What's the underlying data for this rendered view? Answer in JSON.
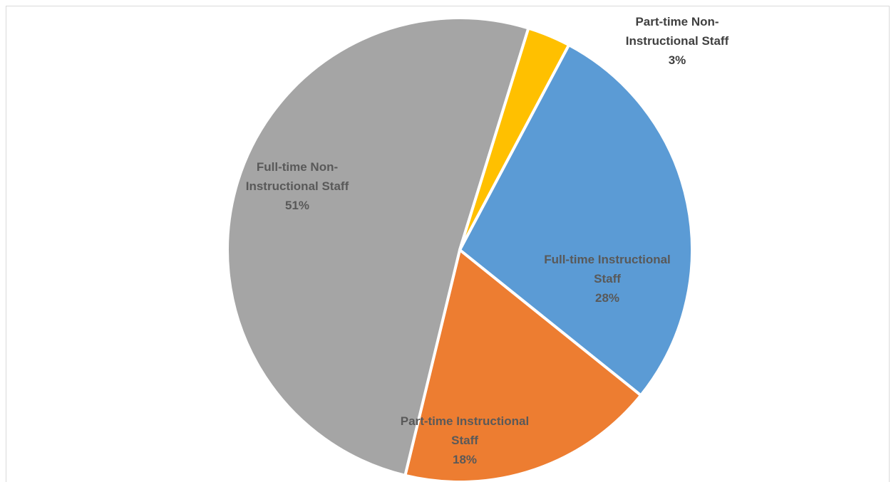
{
  "chart_data": {
    "type": "pie",
    "title": "",
    "slices": [
      {
        "label": "Full-time Instructional Staff",
        "value": 28,
        "value_label": "28%",
        "color": "#5B9BD5"
      },
      {
        "label": "Part-time Instructional Staff",
        "value": 18,
        "value_label": "18%",
        "color": "#ED7D31"
      },
      {
        "label": "Full-time Non-Instructional Staff",
        "value": 51,
        "value_label": "51%",
        "color": "#A5A5A5"
      },
      {
        "label": "Part-time Non-Instructional Staff",
        "value": 3,
        "value_label": "3%",
        "color": "#FFC000"
      }
    ],
    "legend": "none",
    "data_labels": "category and percentage"
  }
}
